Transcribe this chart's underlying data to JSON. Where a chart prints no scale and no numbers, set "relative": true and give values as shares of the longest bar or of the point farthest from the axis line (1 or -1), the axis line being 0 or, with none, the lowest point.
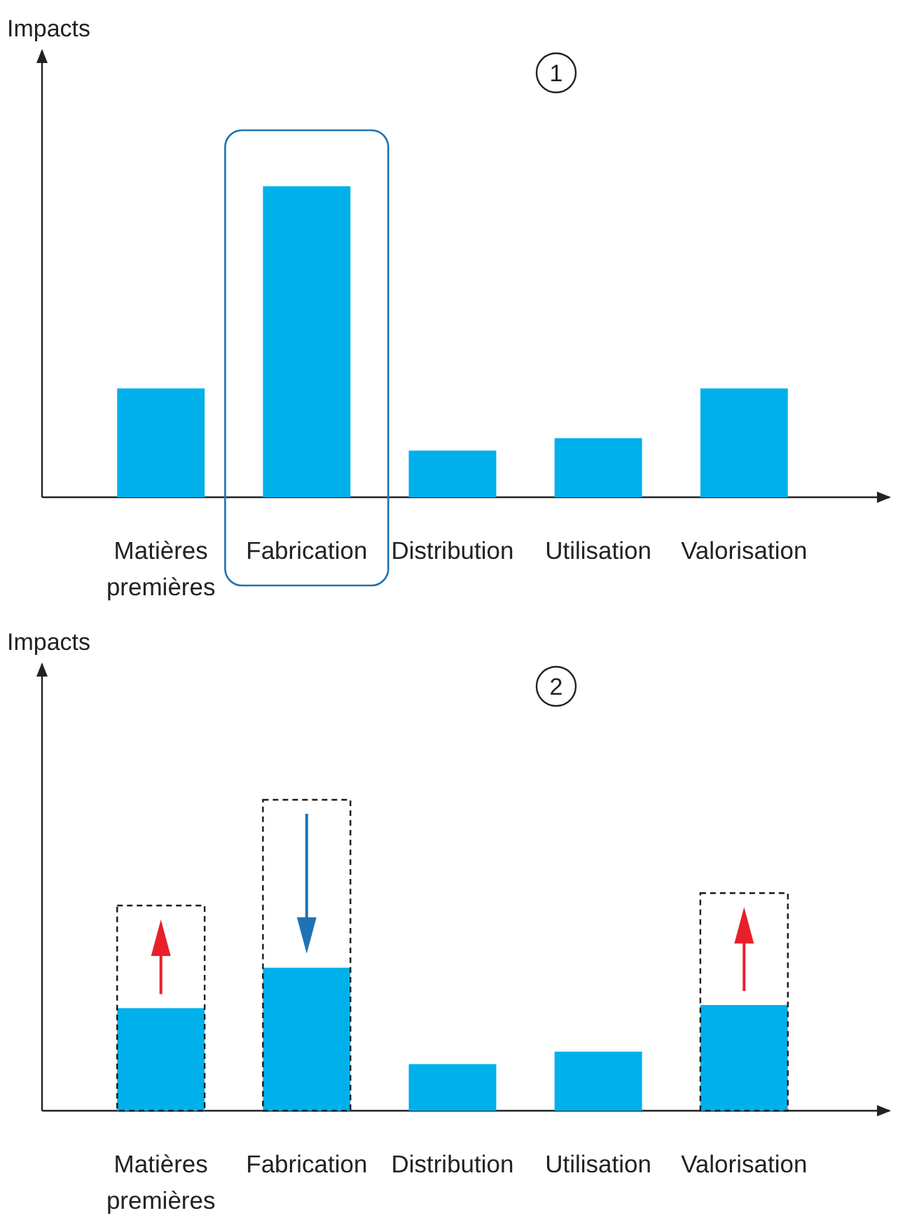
{
  "chart_data": [
    {
      "type": "bar",
      "title": "1",
      "ylabel": "Impacts",
      "relative": true,
      "categories": [
        "Matières premières",
        "Fabrication",
        "Distribution",
        "Utilisation",
        "Valorisation"
      ],
      "series": [
        {
          "color": "#00b0eb",
          "values": [
            0.35,
            1,
            0.15,
            0.19,
            0.35
          ]
        }
      ]
    },
    {
      "type": "bar",
      "title": "2",
      "ylabel": "Impacts",
      "relative": true,
      "categories": [
        "Matières premières",
        "Fabrication",
        "Distribution",
        "Utilisation",
        "Valorisation"
      ],
      "series": [
        {
          "color": "#00b0eb",
          "values": [
            0.33,
            0.46,
            0.15,
            0.19,
            0.34
          ]
        },
        {
          "color": "#1a1a1a",
          "line_style": "dashed",
          "values": [
            0.66,
            1,
            null,
            null,
            0.7
          ]
        }
      ]
    }
  ]
}
